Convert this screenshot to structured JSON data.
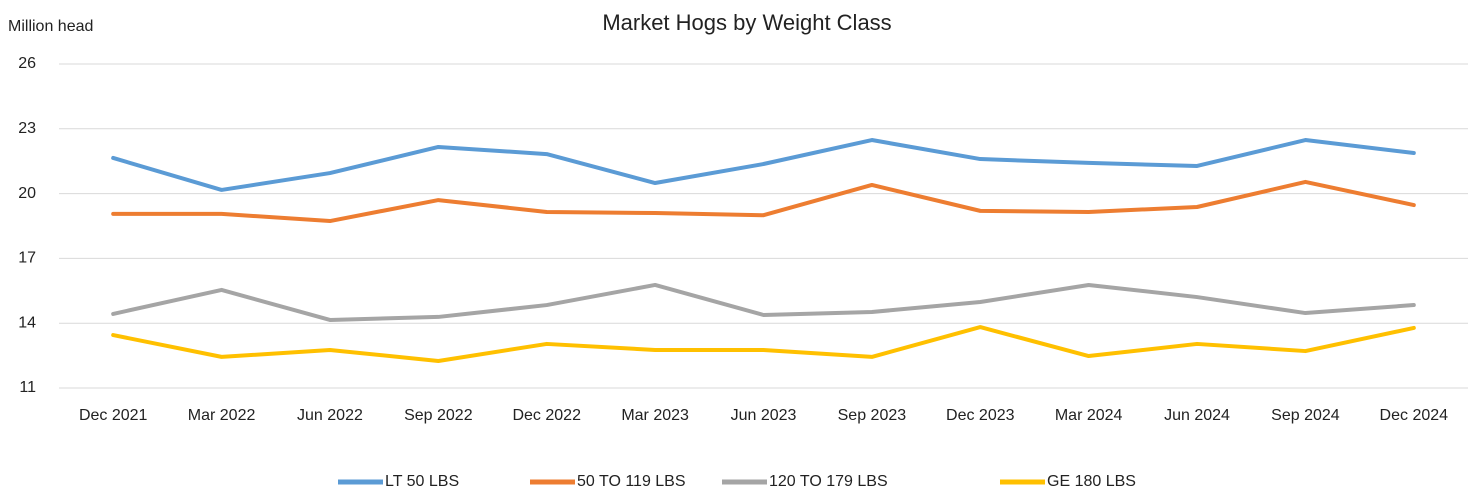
{
  "chart_data": {
    "type": "line",
    "title": "Market Hogs by Weight Class",
    "y_label": "Million head",
    "categories": [
      "Dec 2021",
      "Mar 2022",
      "Jun 2022",
      "Sep 2022",
      "Dec 2022",
      "Mar 2023",
      "Jun 2023",
      "Sep 2023",
      "Dec 2023",
      "Mar 2024",
      "Jun 2024",
      "Sep 2024",
      "Dec 2024"
    ],
    "series": [
      {
        "name": "LT 50 LBS",
        "color": "#5b9bd5",
        "values": [
          21.65,
          20.17,
          20.95,
          22.16,
          21.83,
          20.49,
          21.37,
          22.48,
          21.6,
          21.42,
          21.28,
          22.48,
          21.88
        ]
      },
      {
        "name": "50 TO 119 LBS",
        "color": "#ed7d31",
        "values": [
          19.06,
          19.06,
          18.73,
          19.7,
          19.15,
          19.1,
          19.0,
          20.4,
          19.2,
          19.15,
          19.38,
          20.54,
          19.47
        ]
      },
      {
        "name": "120 TO 179 LBS",
        "color": "#a5a5a5",
        "values": [
          14.43,
          15.54,
          14.15,
          14.29,
          14.84,
          15.77,
          14.38,
          14.52,
          14.98,
          15.77,
          15.21,
          14.47,
          14.84
        ]
      },
      {
        "name": "GE 180 LBS",
        "color": "#ffc000",
        "values": [
          13.45,
          12.44,
          12.76,
          12.25,
          13.04,
          12.76,
          12.76,
          12.44,
          13.82,
          12.48,
          13.04,
          12.71,
          13.78
        ]
      }
    ],
    "ylim": [
      11,
      26
    ],
    "yticks": [
      11,
      14,
      17,
      20,
      23,
      26
    ],
    "grid": true,
    "legend": "bottom"
  }
}
